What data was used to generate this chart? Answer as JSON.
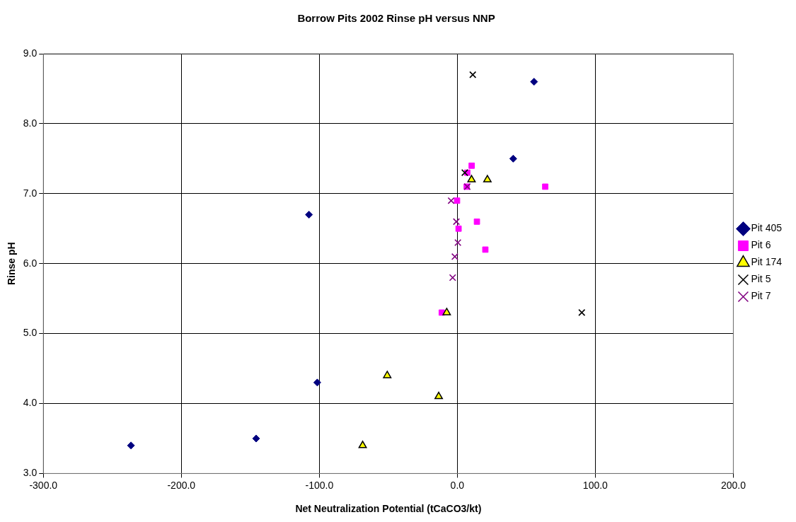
{
  "chart_data": {
    "type": "scatter",
    "title": "Borrow Pits 2002 Rinse pH versus NNP",
    "xlabel": "Net Neutralization Potential (tCaCO3/kt)",
    "ylabel": "Rinse pH",
    "xlim": [
      -300,
      200
    ],
    "xticks": [
      {
        "value": -300,
        "label": "-300.0"
      },
      {
        "value": -200,
        "label": "-200.0"
      },
      {
        "value": -100,
        "label": "-100.0"
      },
      {
        "value": 0,
        "label": "0.0"
      },
      {
        "value": 100,
        "label": "100.0"
      },
      {
        "value": 200,
        "label": "200.0"
      }
    ],
    "ylim": [
      3,
      9
    ],
    "yticks": [
      {
        "value": 3,
        "label": "3.0"
      },
      {
        "value": 4,
        "label": "4.0"
      },
      {
        "value": 5,
        "label": "5.0"
      },
      {
        "value": 6,
        "label": "6.0"
      },
      {
        "value": 7,
        "label": "7.0"
      },
      {
        "value": 8,
        "label": "8.0"
      },
      {
        "value": 9,
        "label": "9.0"
      }
    ],
    "grid": true,
    "legend": "right",
    "series": [
      {
        "name": "Pit 405",
        "color": "#000080",
        "marker": "diamond",
        "x": [
          -236.5,
          -145.8,
          -101.5,
          -107.5,
          40.5,
          55.6
        ],
        "values": [
          3.4,
          3.5,
          4.3,
          6.7,
          7.5,
          8.6
        ]
      },
      {
        "name": "Pit 6",
        "color": "#ff00ff",
        "marker": "square",
        "x": [
          10.4,
          7.2,
          63.7,
          6.8,
          -0.2,
          14.2,
          0.9,
          20.3,
          -11.3
        ],
        "values": [
          7.4,
          7.3,
          7.1,
          7.1,
          6.9,
          6.6,
          6.5,
          6.2,
          5.3
        ]
      },
      {
        "name": "Pit 174",
        "color": "#ffff00",
        "marker": "triangle",
        "x": [
          10.3,
          21.8,
          -7.7,
          -50.8,
          -13.5,
          -68.6
        ],
        "values": [
          7.2,
          7.2,
          5.3,
          4.4,
          4.1,
          3.4
        ]
      },
      {
        "name": "Pit 5",
        "color": "#000000",
        "marker": "cross",
        "x": [
          11.2,
          5.4,
          90.2
        ],
        "values": [
          8.7,
          7.3,
          5.3
        ]
      },
      {
        "name": "Pit 7",
        "color": "#800080",
        "marker": "cross",
        "x": [
          7.2,
          -4.5,
          -0.7,
          0.4,
          -1.8,
          -3.4
        ],
        "values": [
          7.1,
          6.9,
          6.6,
          6.3,
          6.1,
          5.8
        ]
      }
    ]
  }
}
